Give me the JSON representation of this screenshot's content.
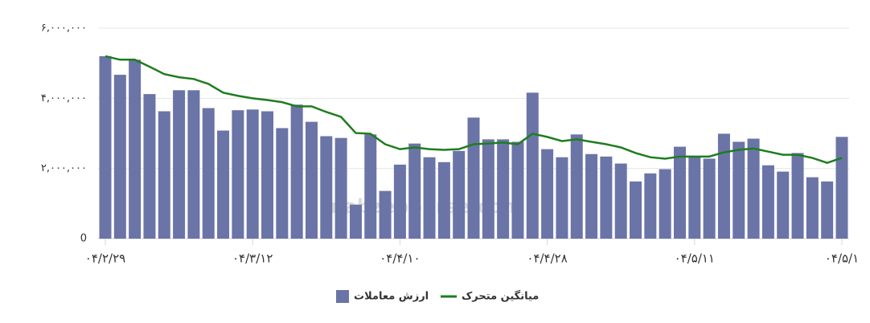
{
  "chart_data": {
    "type": "bar",
    "categories": [
      "۰۴/۲/۲۹",
      null,
      null,
      null,
      null,
      null,
      null,
      null,
      null,
      null,
      "۰۴/۳/۱۲",
      null,
      null,
      null,
      null,
      null,
      null,
      null,
      null,
      null,
      "۰۴/۴/۱۰",
      null,
      null,
      null,
      null,
      null,
      null,
      null,
      null,
      null,
      "۰۴/۴/۲۸",
      null,
      null,
      null,
      null,
      null,
      null,
      null,
      null,
      null,
      "۰۴/۵/۱۱",
      null,
      null,
      null,
      null,
      null,
      null,
      null,
      null,
      null,
      "۰۴/۵/۱"
    ],
    "series": [
      {
        "name": "ارزش معاملات",
        "type": "bar",
        "color": "#6b74a6",
        "values": [
          5200000,
          4670000,
          5100000,
          4120000,
          3630000,
          4230000,
          4230000,
          3720000,
          3080000,
          3660000,
          3680000,
          3630000,
          3150000,
          3820000,
          3330000,
          2920000,
          2870000,
          970000,
          2970000,
          1360000,
          2110000,
          2710000,
          2320000,
          2180000,
          2500000,
          3450000,
          2830000,
          2830000,
          2760000,
          4160000,
          2550000,
          2320000,
          2970000,
          2410000,
          2340000,
          2140000,
          1630000,
          1860000,
          1980000,
          2620000,
          2320000,
          2280000,
          2990000,
          2760000,
          2850000,
          2090000,
          1910000,
          2440000,
          1750000,
          1630000,
          2900000
        ]
      },
      {
        "name": "میانگین متحرک",
        "type": "line",
        "color": "#1e7d1e",
        "values": [
          5200000,
          5100000,
          5100000,
          4900000,
          4690000,
          4600000,
          4550000,
          4410000,
          4160000,
          4070000,
          4000000,
          3950000,
          3890000,
          3770000,
          3770000,
          3610000,
          3470000,
          3010000,
          2990000,
          2690000,
          2550000,
          2600000,
          2550000,
          2530000,
          2550000,
          2690000,
          2710000,
          2740000,
          2690000,
          2990000,
          2900000,
          2780000,
          2830000,
          2760000,
          2690000,
          2600000,
          2440000,
          2320000,
          2280000,
          2340000,
          2340000,
          2340000,
          2460000,
          2530000,
          2570000,
          2480000,
          2390000,
          2390000,
          2300000,
          2160000,
          2300000
        ]
      }
    ],
    "ylim": [
      0,
      6000000
    ],
    "yticks": [
      0,
      {
        "value": 2000000,
        "label": "۲,۰۰۰,۰۰۰"
      },
      {
        "value": 4000000,
        "label": "۴,۰۰۰,۰۰۰"
      },
      {
        "value": 6000000,
        "label": "۶,۰۰۰,۰۰۰"
      }
    ],
    "grid": true,
    "legend": "bottom",
    "watermark": "nabzebourse.com"
  }
}
